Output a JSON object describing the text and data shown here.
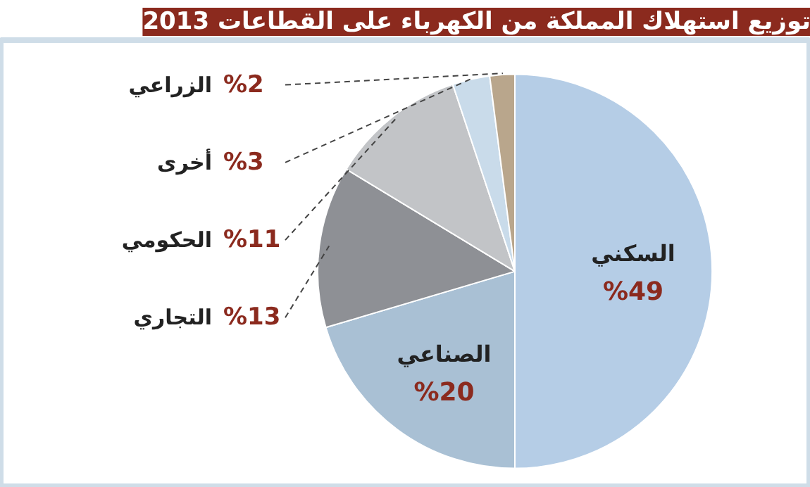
{
  "chart_data": {
    "type": "pie",
    "title": "توزيع استهلاك المملكة من الكهرباء على القطاعات 2013",
    "categories": [
      "السكني",
      "الصناعي",
      "التجاري",
      "الحكومي",
      "أخرى",
      "الزراعي"
    ],
    "values": [
      49,
      20,
      13,
      11,
      3,
      2
    ],
    "colors": [
      "#b5cde6",
      "#a9c0d4",
      "#8e9095",
      "#c2c4c7",
      "#c9dbea",
      "#b9a68c"
    ],
    "value_labels": [
      "%49",
      "%20",
      "%13",
      "%11",
      "%3",
      "%2"
    ]
  }
}
